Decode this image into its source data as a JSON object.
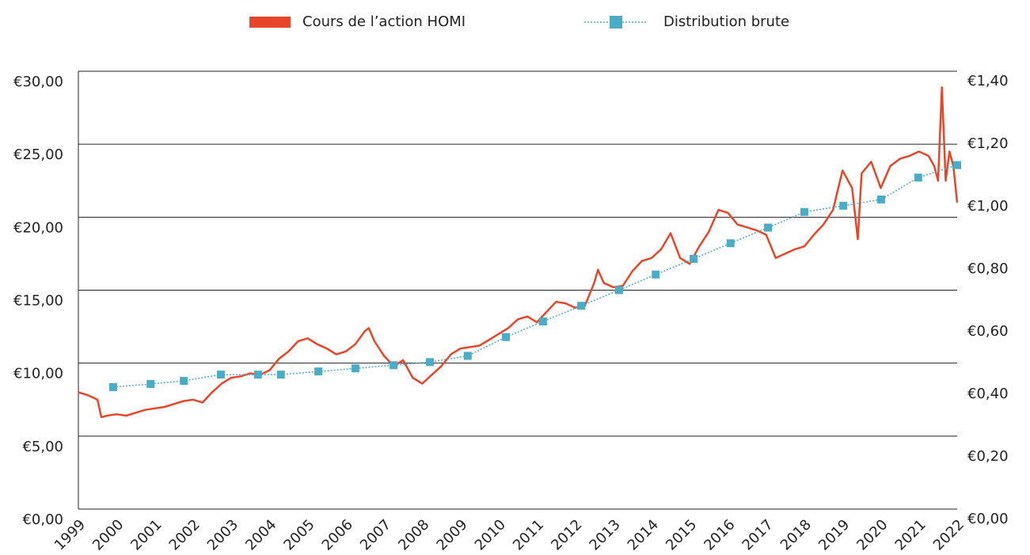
{
  "chart_data": {
    "type": "line",
    "series": [
      {
        "name": "Cours de l’action HOMI",
        "color": "#e8462a",
        "x": [
          1999.0,
          1999.25,
          1999.5,
          1999.6,
          1999.75,
          2000.0,
          2000.25,
          2000.5,
          2000.75,
          2001.0,
          2001.25,
          2001.5,
          2001.75,
          2002.0,
          2002.25,
          2002.5,
          2002.75,
          2003.0,
          2003.25,
          2003.5,
          2003.75,
          2004.0,
          2004.25,
          2004.5,
          2004.75,
          2005.0,
          2005.25,
          2005.5,
          2005.75,
          2006.0,
          2006.25,
          2006.5,
          2006.6,
          2006.75,
          2007.0,
          2007.25,
          2007.5,
          2007.75,
          2008.0,
          2008.25,
          2008.5,
          2008.75,
          2009.0,
          2009.25,
          2009.5,
          2009.75,
          2010.0,
          2010.25,
          2010.5,
          2010.75,
          2011.0,
          2011.25,
          2011.5,
          2011.75,
          2012.0,
          2012.25,
          2012.5,
          2012.6,
          2012.75,
          2013.0,
          2013.25,
          2013.5,
          2013.75,
          2014.0,
          2014.25,
          2014.5,
          2014.75,
          2015.0,
          2015.25,
          2015.5,
          2015.75,
          2016.0,
          2016.25,
          2016.5,
          2016.75,
          2017.0,
          2017.25,
          2017.5,
          2017.75,
          2018.0,
          2018.25,
          2018.5,
          2018.75,
          2019.0,
          2019.25,
          2019.4,
          2019.5,
          2019.75,
          2020.0,
          2020.25,
          2020.5,
          2020.75,
          2021.0,
          2021.25,
          2021.4,
          2021.5,
          2021.6,
          2021.7,
          2021.8,
          2021.9,
          2022.0
        ],
        "values": [
          8.0,
          7.8,
          7.5,
          6.3,
          6.4,
          6.5,
          6.4,
          6.6,
          6.8,
          6.9,
          7.0,
          7.2,
          7.4,
          7.5,
          7.3,
          8.0,
          8.6,
          9.0,
          9.1,
          9.3,
          9.2,
          9.5,
          10.3,
          10.8,
          11.5,
          11.7,
          11.3,
          11.0,
          10.6,
          10.8,
          11.3,
          12.2,
          12.4,
          11.5,
          10.5,
          9.8,
          10.2,
          9.0,
          8.6,
          9.2,
          9.8,
          10.6,
          11.0,
          11.1,
          11.2,
          11.6,
          12.0,
          12.4,
          13.0,
          13.2,
          12.8,
          13.5,
          14.2,
          14.1,
          13.8,
          13.9,
          15.5,
          16.4,
          15.5,
          15.2,
          15.3,
          16.3,
          17.0,
          17.2,
          17.8,
          18.9,
          17.2,
          16.8,
          18.0,
          19.0,
          20.5,
          20.3,
          19.5,
          19.3,
          19.1,
          18.8,
          17.2,
          17.5,
          17.8,
          18.0,
          18.8,
          19.5,
          20.5,
          23.2,
          22.0,
          18.5,
          23.0,
          23.8,
          22.0,
          23.5,
          24.0,
          24.2,
          24.5,
          24.2,
          23.5,
          22.5,
          28.9,
          22.5,
          24.5,
          23.5,
          21.0
        ]
      },
      {
        "name": "Distribution brute",
        "color": "#4bacc6",
        "axis": "y2",
        "x": [
          1999.91,
          2000.89,
          2001.76,
          2002.73,
          2003.7,
          2004.3,
          2005.28,
          2006.25,
          2007.25,
          2008.2,
          2009.19,
          2010.19,
          2011.16,
          2012.16,
          2013.15,
          2014.11,
          2015.1,
          2016.07,
          2017.05,
          2018.0,
          2019.02,
          2020.01,
          2020.98,
          2022.0
        ],
        "values": [
          0.39,
          0.4,
          0.41,
          0.43,
          0.43,
          0.43,
          0.44,
          0.45,
          0.46,
          0.47,
          0.49,
          0.55,
          0.6,
          0.65,
          0.7,
          0.75,
          0.8,
          0.85,
          0.9,
          0.95,
          0.97,
          0.99,
          1.06,
          1.1
        ]
      }
    ],
    "xlim": [
      1999,
      2022
    ],
    "xticks": [
      1999,
      2000,
      2001,
      2002,
      2003,
      2004,
      2005,
      2006,
      2007,
      2008,
      2009,
      2010,
      2011,
      2012,
      2013,
      2014,
      2015,
      2016,
      2017,
      2018,
      2019,
      2020,
      2021,
      2022
    ],
    "ylim": [
      0,
      30
    ],
    "yticks": [
      {
        "value": 0,
        "label": "€0,00"
      },
      {
        "value": 5,
        "label": "€5,00"
      },
      {
        "value": 10,
        "label": "€10,00"
      },
      {
        "value": 15,
        "label": "€15,00"
      },
      {
        "value": 20,
        "label": "€20,00"
      },
      {
        "value": 25,
        "label": "€25,00"
      },
      {
        "value": 30,
        "label": "€30,00"
      }
    ],
    "y2lim": [
      0,
      1.4
    ],
    "y2ticks": [
      {
        "value": 0,
        "label": "€0,00"
      },
      {
        "value": 0.2,
        "label": "€0,20"
      },
      {
        "value": 0.4,
        "label": "€0,40"
      },
      {
        "value": 0.6,
        "label": "€0,60"
      },
      {
        "value": 0.8,
        "label": "€0,80"
      },
      {
        "value": 1.0,
        "label": "€1,00"
      },
      {
        "value": 1.2,
        "label": "€1,20"
      },
      {
        "value": 1.4,
        "label": "€1,40"
      }
    ],
    "grid": true
  }
}
